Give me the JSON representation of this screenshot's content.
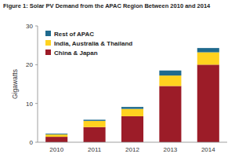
{
  "chart_data": {
    "type": "bar",
    "title": "Figure 1: Solar PV Demand from the APAC Region Between 2010 and 2014",
    "y_label": "Gigawatts",
    "categories": [
      "2010",
      "2011",
      "2012",
      "2013",
      "2014"
    ],
    "stacked": true,
    "legend": "top-left",
    "grid": false,
    "ylim": [
      0,
      30
    ],
    "yticks": [
      0,
      10,
      20,
      30
    ],
    "series": [
      {
        "name": "China & Japan",
        "color": "#9c1c28",
        "values": [
          1.4,
          3.9,
          6.7,
          14.5,
          20.0
        ]
      },
      {
        "name": "India, Australia & Thailand",
        "color": "#ffd21f",
        "values": [
          0.6,
          1.6,
          1.9,
          2.7,
          3.2
        ]
      },
      {
        "name": "Rest of APAC",
        "color": "#1f6a8e",
        "values": [
          0.2,
          0.3,
          0.5,
          1.3,
          1.1
        ]
      }
    ]
  }
}
